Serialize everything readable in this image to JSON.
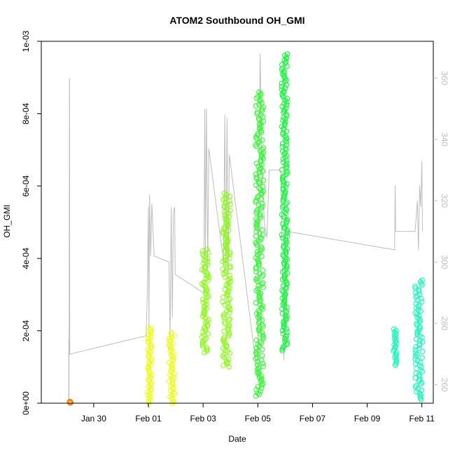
{
  "chart_data": {
    "type": "scatter",
    "title": "ATOM2 Southbound OH_GMI",
    "xlabel": "Date",
    "ylabel": "OH_GMI",
    "y2label": "",
    "x_range_days": [
      "2017-01-28T02:00",
      "2017-02-11T10:00"
    ],
    "ylim": [
      0,
      0.001
    ],
    "y2lim": [
      254,
      372
    ],
    "x_ticks": [
      {
        "date": "2017-01-30",
        "label": "Jan 30"
      },
      {
        "date": "2017-02-01",
        "label": "Feb 01"
      },
      {
        "date": "2017-02-03",
        "label": "Feb 03"
      },
      {
        "date": "2017-02-05",
        "label": "Feb 05"
      },
      {
        "date": "2017-02-07",
        "label": "Feb 07"
      },
      {
        "date": "2017-02-09",
        "label": "Feb 09"
      },
      {
        "date": "2017-02-11",
        "label": "Feb 11"
      }
    ],
    "y_ticks": [
      {
        "value": 0,
        "label": "0e+00"
      },
      {
        "value": 0.0002,
        "label": "2e-04"
      },
      {
        "value": 0.0004,
        "label": "4e-04"
      },
      {
        "value": 0.0006,
        "label": "6e-04"
      },
      {
        "value": 0.0008,
        "label": "8e-04"
      },
      {
        "value": 0.001,
        "label": "1e-03"
      }
    ],
    "y2_ticks": [
      {
        "value": 260,
        "label": "260"
      },
      {
        "value": 280,
        "label": "280"
      },
      {
        "value": 300,
        "label": "300"
      },
      {
        "value": 320,
        "label": "320"
      },
      {
        "value": 340,
        "label": "340"
      },
      {
        "value": 360,
        "label": "360"
      }
    ],
    "secondary_line_color": "#bebebe",
    "secondary_line": [
      [
        "2017-01-29T02:00",
        255
      ],
      [
        "2017-01-29T02:10",
        275
      ],
      [
        "2017-01-29T02:20",
        255
      ],
      [
        "2017-01-29T02:40",
        360
      ],
      [
        "2017-01-29T02:50",
        358
      ],
      [
        "2017-01-29T03:00",
        270
      ],
      [
        "2017-01-31T22:00",
        276
      ],
      [
        "2017-01-31T23:00",
        290
      ],
      [
        "2017-02-01T00:00",
        318
      ],
      [
        "2017-02-01T00:30",
        278
      ],
      [
        "2017-02-01T01:00",
        322
      ],
      [
        "2017-02-01T02:00",
        302
      ],
      [
        "2017-02-01T03:00",
        319
      ],
      [
        "2017-02-01T05:00",
        302
      ],
      [
        "2017-02-01T18:00",
        300
      ],
      [
        "2017-02-01T19:00",
        276
      ],
      [
        "2017-02-01T20:00",
        318
      ],
      [
        "2017-02-01T21:00",
        282
      ],
      [
        "2017-02-01T22:00",
        316
      ],
      [
        "2017-02-01T23:00",
        318
      ],
      [
        "2017-02-01T23:30",
        296
      ],
      [
        "2017-02-03T00:30",
        290
      ],
      [
        "2017-02-03T01:30",
        350
      ],
      [
        "2017-02-03T02:00",
        302
      ],
      [
        "2017-02-03T03:00",
        350
      ],
      [
        "2017-02-03T04:00",
        297
      ],
      [
        "2017-02-03T05:00",
        337
      ],
      [
        "2017-02-03T18:00",
        300
      ],
      [
        "2017-02-03T19:00",
        348
      ],
      [
        "2017-02-03T20:00",
        297
      ],
      [
        "2017-02-03T21:00",
        347
      ],
      [
        "2017-02-03T22:00",
        296
      ],
      [
        "2017-02-03T23:00",
        335
      ],
      [
        "2017-02-05T00:00",
        262
      ],
      [
        "2017-02-05T01:00",
        328
      ],
      [
        "2017-02-05T02:00",
        368
      ],
      [
        "2017-02-05T04:00",
        324
      ],
      [
        "2017-02-05T06:00",
        312
      ],
      [
        "2017-02-05T08:00",
        308
      ],
      [
        "2017-02-05T10:00",
        330
      ],
      [
        "2017-02-05T20:00",
        330
      ],
      [
        "2017-02-05T23:00",
        268
      ],
      [
        "2017-02-06T00:00",
        310
      ],
      [
        "2017-02-06T01:00",
        278
      ],
      [
        "2017-02-06T02:00",
        310
      ],
      [
        "2017-02-10T00:00",
        304
      ],
      [
        "2017-02-10T00:30",
        325
      ],
      [
        "2017-02-10T01:00",
        310
      ],
      [
        "2017-02-10T18:00",
        310
      ],
      [
        "2017-02-10T20:00",
        320
      ],
      [
        "2017-02-10T21:00",
        304
      ],
      [
        "2017-02-10T22:00",
        325
      ],
      [
        "2017-02-10T23:00",
        318
      ],
      [
        "2017-02-11T00:00",
        333
      ],
      [
        "2017-02-11T00:30",
        310
      ]
    ],
    "scatter_clusters": [
      {
        "start": "2017-01-29T02:00",
        "end": "2017-01-29T04:00",
        "ymin": 0.0,
        "ymax": 5e-06,
        "color": "#ff7f00"
      },
      {
        "start": "2017-01-31T23:00",
        "end": "2017-02-01T03:00",
        "ymin": 0.0,
        "ymax": 0.00021,
        "color": "#e8ff00"
      },
      {
        "start": "2017-02-01T18:00",
        "end": "2017-02-01T23:00",
        "ymin": 0.0,
        "ymax": 0.000195,
        "color": "#e8ff00"
      },
      {
        "start": "2017-02-02T23:00",
        "end": "2017-02-03T05:00",
        "ymin": 0.00014,
        "ymax": 0.000425,
        "color": "#7fff00"
      },
      {
        "start": "2017-02-03T17:00",
        "end": "2017-02-04T00:00",
        "ymin": 0.0001,
        "ymax": 0.00058,
        "color": "#7fff00"
      },
      {
        "start": "2017-02-04T22:00",
        "end": "2017-02-05T05:00",
        "ymin": 2e-05,
        "ymax": 0.00086,
        "color": "#1fff1f"
      },
      {
        "start": "2017-02-05T21:00",
        "end": "2017-02-06T02:00",
        "ymin": 0.000145,
        "ymax": 0.000965,
        "color": "#00ff2a"
      },
      {
        "start": "2017-02-09T23:00",
        "end": "2017-02-10T02:00",
        "ymin": 0.000105,
        "ymax": 0.000205,
        "color": "#00ffb4"
      },
      {
        "start": "2017-02-10T18:00",
        "end": "2017-02-11T01:00",
        "ymin": 1e-05,
        "ymax": 0.00034,
        "color": "#00ffb4"
      }
    ]
  }
}
